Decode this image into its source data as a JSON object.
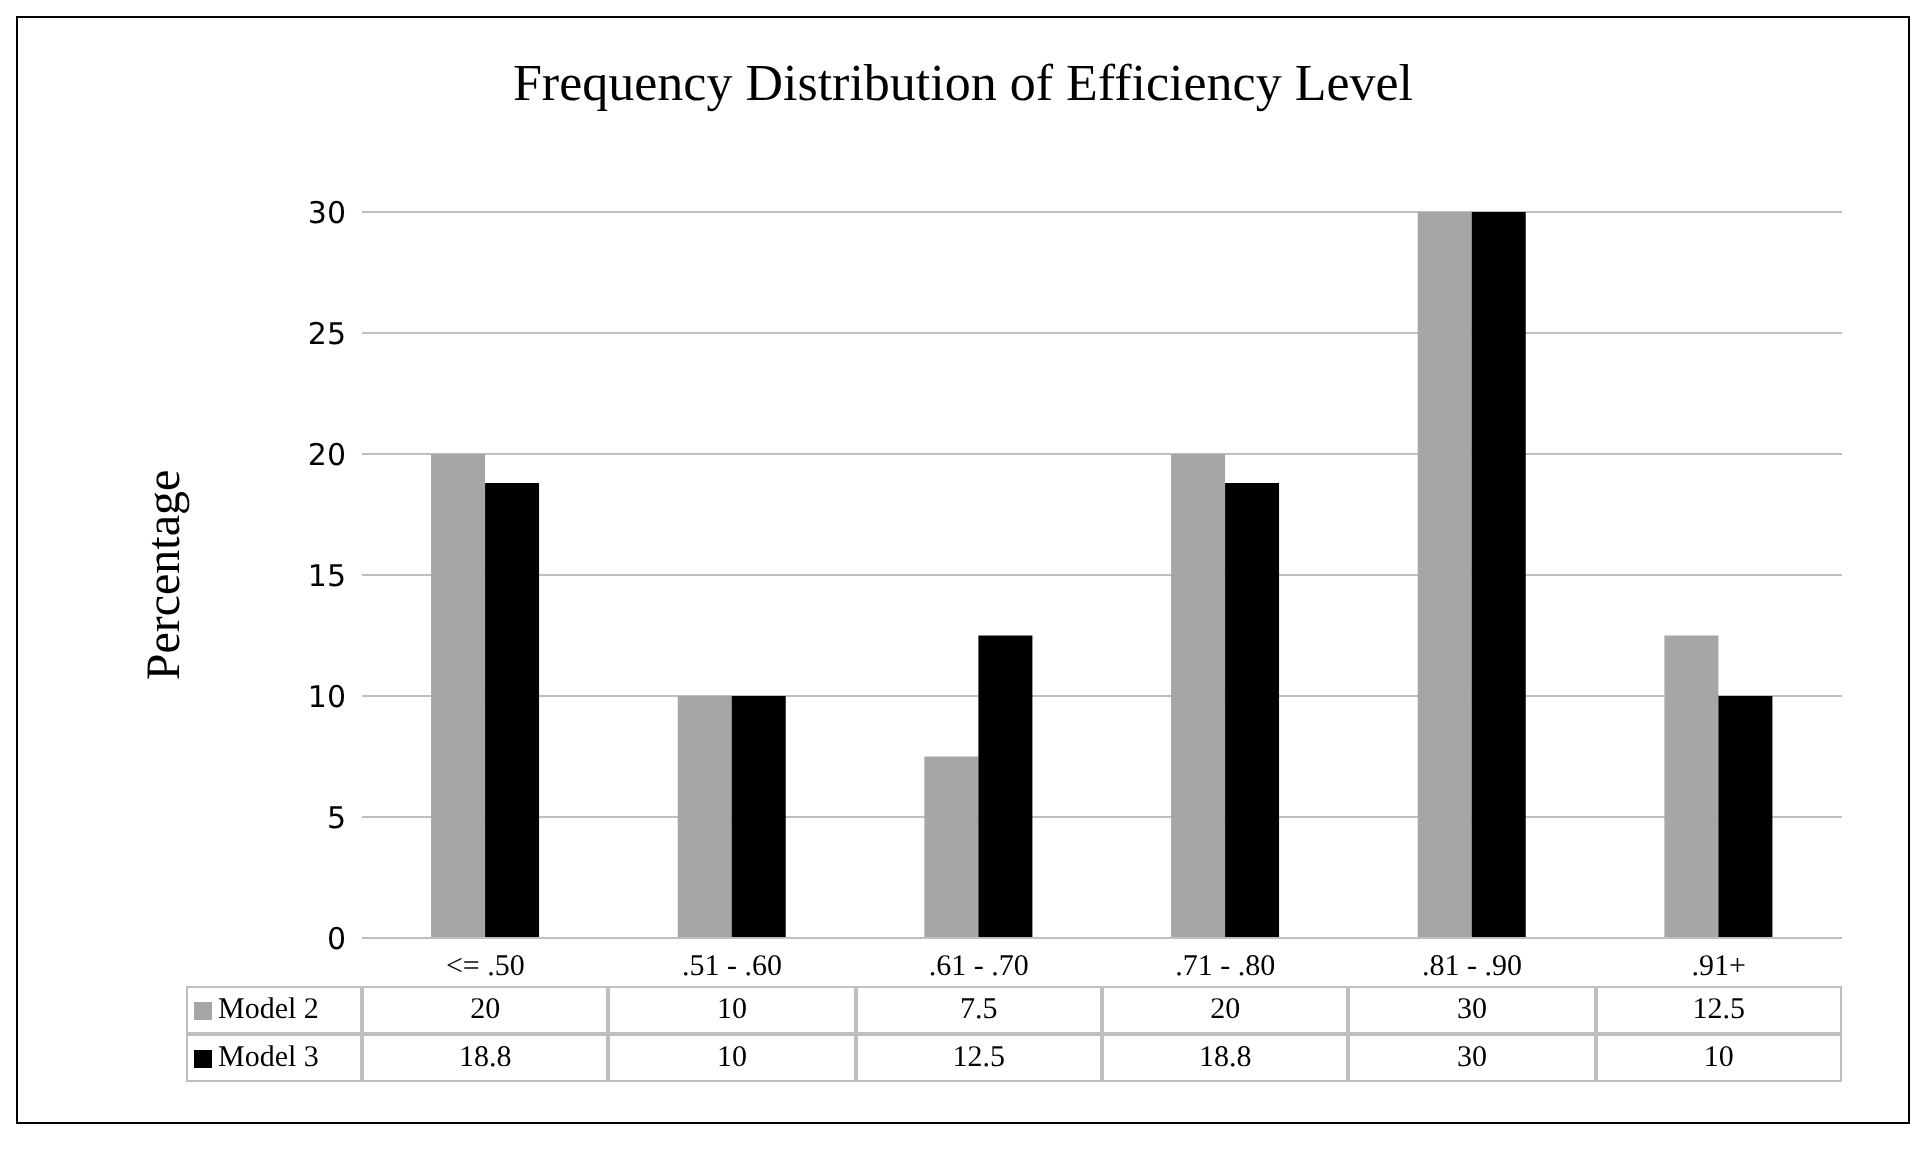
{
  "chart_data": {
    "type": "bar",
    "title": "Frequency Distribution of Efficiency Level",
    "ylabel": "Percentage",
    "categories": [
      "<= .50",
      ".51 - .60",
      ".61 - .70",
      ".71 - .80",
      ".81 - .90",
      ".91+"
    ],
    "series": [
      {
        "name": "Model 2",
        "color": "#a6a6a6",
        "values": [
          20,
          10,
          7.5,
          20,
          30,
          12.5
        ]
      },
      {
        "name": "Model 3",
        "color": "#000000",
        "values": [
          18.8,
          10,
          12.5,
          18.8,
          30,
          10
        ]
      }
    ],
    "ylim": [
      0,
      30
    ],
    "yticks": [
      0,
      5,
      10,
      15,
      20,
      25,
      30
    ],
    "grid": "y",
    "legend": "bottom",
    "data_labels": true
  }
}
